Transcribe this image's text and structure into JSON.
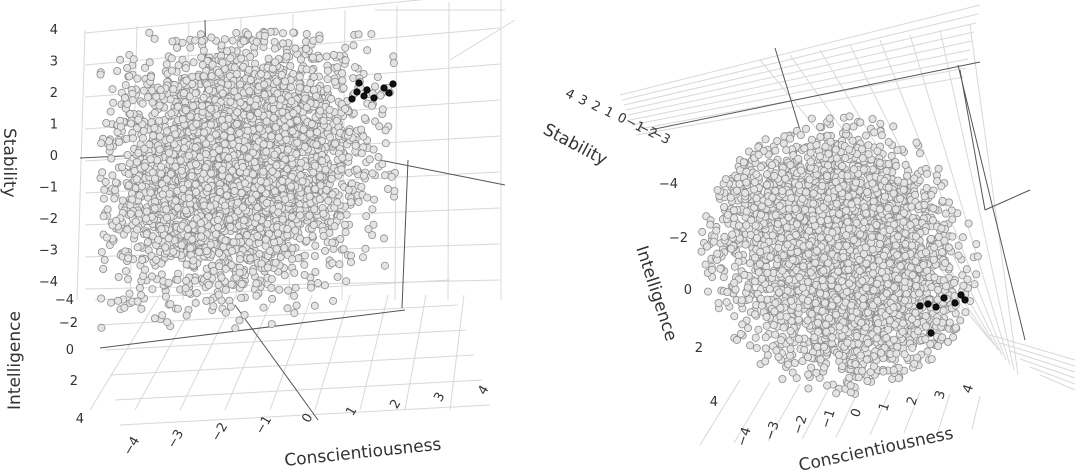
{
  "chart_data": [
    {
      "type": "scatter",
      "projection": "3d",
      "panel": "left",
      "axes": {
        "x": {
          "label": "Conscientiousness",
          "ticks": [
            "−4",
            "−3",
            "−2",
            "−1",
            "0",
            "1",
            "2",
            "3",
            "4"
          ]
        },
        "y": {
          "label": "Stability",
          "ticks": [
            "4",
            "3",
            "2",
            "1",
            "0",
            "−1",
            "−2",
            "−3",
            "−4"
          ]
        },
        "z": {
          "label": "Intelligence",
          "ticks": [
            "−4",
            "−2",
            "0",
            "2",
            "4"
          ]
        }
      },
      "grid": true,
      "series": [
        {
          "role": "cloud",
          "color": "#e4e4e4",
          "edge": "#8c8c8c",
          "n_points": 4000,
          "mean": [
            0,
            0,
            0
          ],
          "sd": 1
        },
        {
          "role": "highlighted",
          "color": "#111111",
          "points": [
            [
              2.6,
              2.3,
              -1.5
            ],
            [
              2.5,
              2.1,
              -1.2
            ],
            [
              2.8,
              2.2,
              -1.4
            ],
            [
              2.9,
              2.0,
              -1.1
            ],
            [
              3.0,
              1.9,
              -1.6
            ],
            [
              3.4,
              2.0,
              -1.3
            ],
            [
              3.6,
              2.1,
              -1.0
            ],
            [
              3.8,
              2.2,
              -1.4
            ],
            [
              2.4,
              1.9,
              -0.9
            ]
          ]
        }
      ]
    },
    {
      "type": "scatter",
      "projection": "3d",
      "panel": "right",
      "axes": {
        "x": {
          "label": "Conscientiousness",
          "ticks": [
            "−4",
            "−3",
            "−2",
            "−1",
            "0",
            "1",
            "2",
            "3",
            "4"
          ]
        },
        "y": {
          "label": "Stability",
          "ticks": [
            "4",
            "3",
            "2",
            "1",
            "0",
            "−1",
            "−2",
            "−3"
          ]
        },
        "z": {
          "label": "Intelligence",
          "ticks": [
            "−4",
            "−2",
            "0",
            "2",
            "4"
          ]
        }
      },
      "grid": true,
      "series": [
        {
          "role": "cloud",
          "color": "#e4e4e4",
          "edge": "#8c8c8c",
          "n_points": 4000,
          "mean": [
            0,
            0,
            0
          ],
          "sd": 1
        },
        {
          "role": "highlighted",
          "color": "#111111",
          "points": [
            [
              2.2,
              2.3,
              0.6
            ],
            [
              2.5,
              2.2,
              0.6
            ],
            [
              2.8,
              2.1,
              0.7
            ],
            [
              3.3,
              2.0,
              0.3
            ],
            [
              3.6,
              1.9,
              0.5
            ],
            [
              3.9,
              2.2,
              0.2
            ],
            [
              4.0,
              2.0,
              0.4
            ],
            [
              2.6,
              1.8,
              1.6
            ]
          ]
        }
      ]
    }
  ]
}
